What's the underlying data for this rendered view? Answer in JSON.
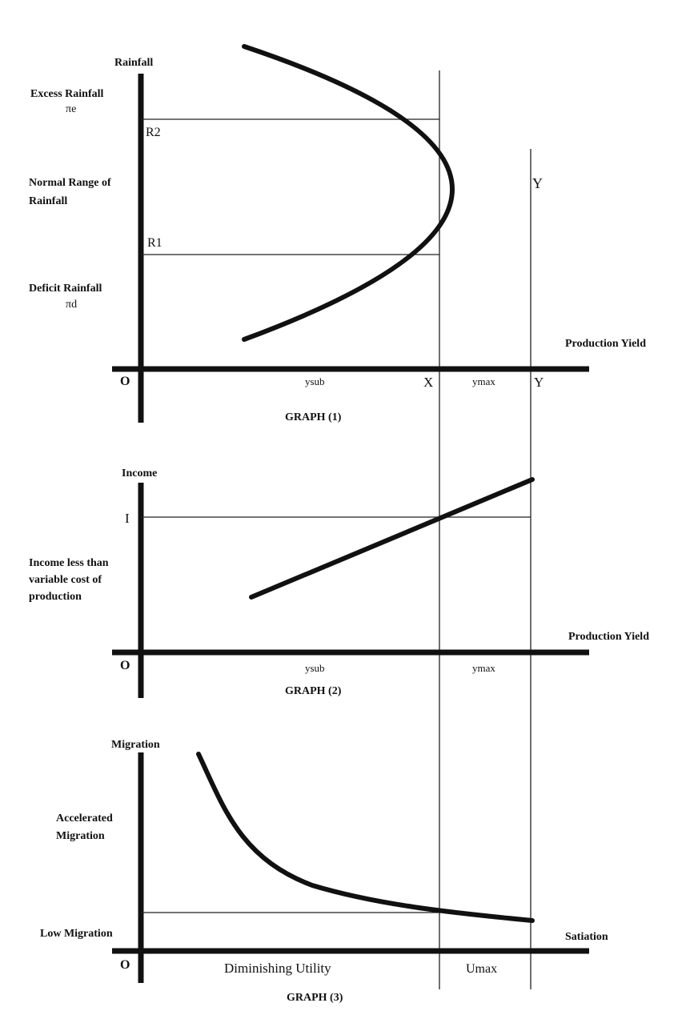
{
  "graph1": {
    "y_axis_label": "Rainfall",
    "excess_label": "Excess Rainfall",
    "excess_symbol": "πe",
    "r2": "R2",
    "normal_label_1": "Normal Range of",
    "normal_label_2": "Rainfall",
    "r1": "R1",
    "deficit_label": "Deficit Rainfall",
    "deficit_symbol": "πd",
    "x_axis_label": "Production Yield",
    "origin": "O",
    "ysub": "ysub",
    "x_mark": "X",
    "ymax": "ymax",
    "y_mark": "Y",
    "peak_label": "Y",
    "caption": "GRAPH (1)"
  },
  "graph2": {
    "y_axis_label": "Income",
    "i_mark": "I",
    "note_1": "Income less than",
    "note_2": "variable cost of",
    "note_3": "production",
    "x_axis_label": "Production Yield",
    "origin": "O",
    "ysub": "ysub",
    "ymax": "ymax",
    "caption": "GRAPH (2)"
  },
  "graph3": {
    "y_axis_label": "Migration",
    "accel_1": "Accelerated",
    "accel_2": "Migration",
    "low_label": "Low Migration",
    "satiation": "Satiation",
    "origin": "O",
    "diminishing": "Diminishing Utility",
    "umax": "Umax",
    "caption": "GRAPH (3)"
  }
}
